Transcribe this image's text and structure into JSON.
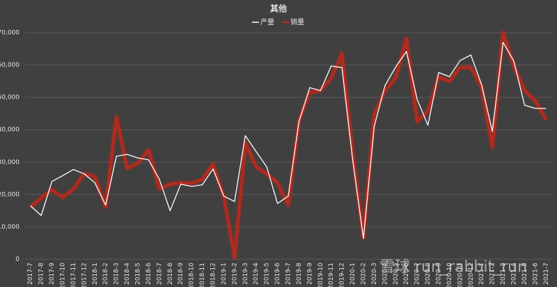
{
  "chart_data": {
    "type": "line",
    "title": "其他",
    "categories": [
      "2017-7",
      "2017-8",
      "2017-9",
      "2017-10",
      "2017-11",
      "2017-12",
      "2018-1",
      "2018-2",
      "2018-3",
      "2018-4",
      "2018-5",
      "2018-6",
      "2018-7",
      "2018-8",
      "2018-9",
      "2018-10",
      "2018-11",
      "2018-12",
      "2019-1",
      "2019-2",
      "2019-3",
      "2019-4",
      "2019-5",
      "2019-6",
      "2019-7",
      "2019-8",
      "2019-9",
      "2019-10",
      "2019-11",
      "2019-12",
      "2020-1",
      "2020-2",
      "2020-3",
      "2020-4",
      "2020-5",
      "2020-6",
      "2020-7",
      "2020-8",
      "2020-9",
      "2020-10",
      "2020-11",
      "2020-12",
      "2021-1",
      "2021-2",
      "2021-3",
      "2021-4",
      "2021-5",
      "2021-6",
      "2021-7"
    ],
    "series": [
      {
        "name": "产量",
        "color": "#ffffff",
        "values": [
          16500,
          13500,
          24000,
          25800,
          27700,
          26400,
          23600,
          16700,
          31800,
          32400,
          31300,
          30700,
          24700,
          15000,
          23200,
          22500,
          23000,
          27900,
          19500,
          17800,
          38200,
          33300,
          28500,
          17200,
          19500,
          42500,
          53000,
          52100,
          59700,
          59200,
          30700,
          6400,
          41000,
          53600,
          59400,
          64200,
          49400,
          41400,
          57700,
          56400,
          61400,
          63100,
          53900,
          39500,
          67000,
          61200,
          47600,
          46600,
          46600
        ]
      },
      {
        "name": "销量",
        "color": "#b52a1f",
        "values": [
          16100,
          18900,
          21500,
          19100,
          21700,
          26400,
          25500,
          16100,
          44000,
          28100,
          29600,
          33900,
          21700,
          23200,
          23600,
          23400,
          24700,
          29400,
          19300,
          500,
          36000,
          28500,
          26400,
          23600,
          16700,
          42900,
          51500,
          52100,
          56000,
          63500,
          32800,
          6700,
          44600,
          52100,
          56000,
          68200,
          42500,
          45700,
          56400,
          54900,
          59200,
          59200,
          53200,
          34500,
          70000,
          59700,
          52100,
          48900,
          43100
        ]
      }
    ],
    "ylim": [
      0,
      70000
    ],
    "yticks": [
      0,
      {
        "value": 10000,
        "label": "10,000"
      },
      {
        "value": 20000,
        "label": "20,000"
      },
      {
        "value": 30000,
        "label": "30,000"
      },
      {
        "value": 40000,
        "label": "40,000"
      },
      {
        "value": 50000,
        "label": "50,000"
      },
      {
        "value": 60000,
        "label": "60,000"
      },
      {
        "value": 70000,
        "label": "70,000"
      }
    ],
    "grid": true,
    "legend": "top"
  },
  "watermark": "雪球 run_rabbit_run"
}
